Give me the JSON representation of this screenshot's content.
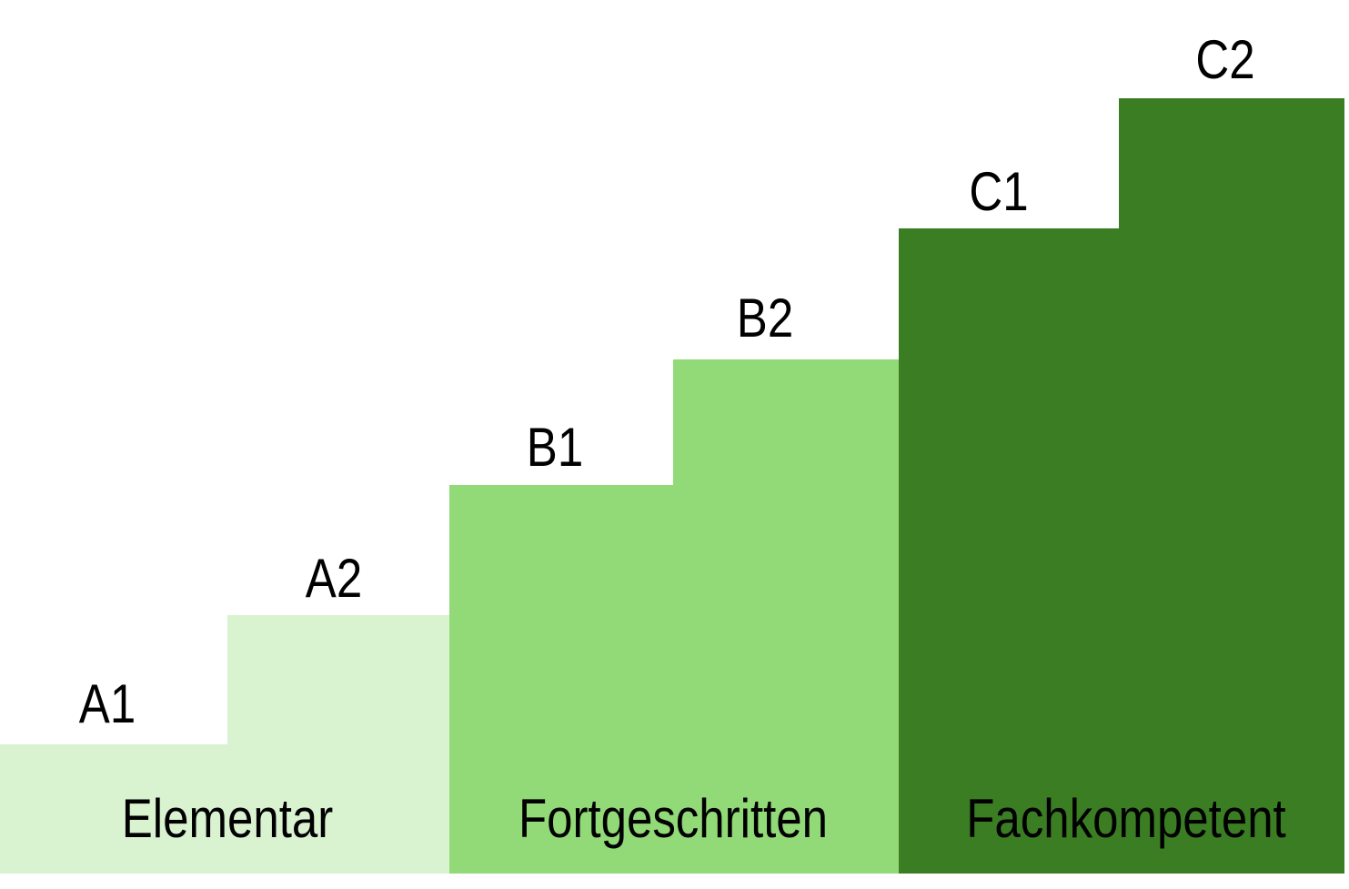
{
  "steps": [
    {
      "label": "A1"
    },
    {
      "label": "A2"
    },
    {
      "label": "B1"
    },
    {
      "label": "B2"
    },
    {
      "label": "C1"
    },
    {
      "label": "C2"
    }
  ],
  "groups": [
    {
      "label": "Elementar"
    },
    {
      "label": "Fortgeschritten"
    },
    {
      "label": "Fachkompetent"
    }
  ]
}
